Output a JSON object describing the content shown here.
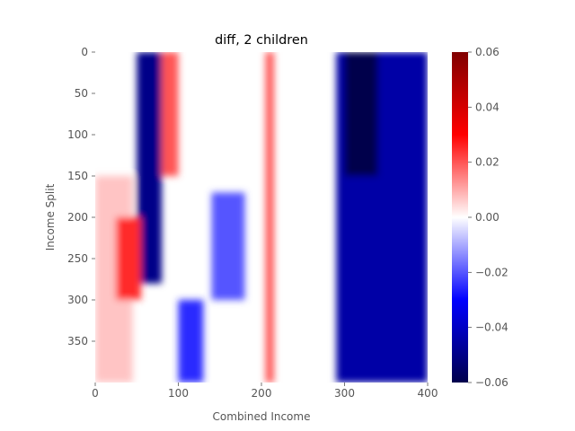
{
  "chart_data": {
    "type": "heatmap",
    "title": "diff, 2 children",
    "xlabel": "Combined Income",
    "ylabel": "Income Split",
    "xlim": [
      0,
      400
    ],
    "ylim": [
      400,
      0
    ],
    "x_ticks": [
      "0",
      "100",
      "200",
      "300",
      "400"
    ],
    "y_ticks": [
      "0",
      "50",
      "100",
      "150",
      "200",
      "250",
      "300",
      "350"
    ],
    "colormap": "seismic",
    "colorbar": {
      "vmin": -0.06,
      "vmax": 0.06,
      "ticks": [
        "−0.06",
        "−0.04",
        "−0.02",
        "0.00",
        "0.02",
        "0.04",
        "0.06"
      ]
    },
    "grid": false,
    "features": [
      {
        "x_range": [
          290,
          400
        ],
        "y_range": [
          0,
          400
        ],
        "approx_value": -0.045
      },
      {
        "x_range": [
          300,
          340
        ],
        "y_range": [
          0,
          150
        ],
        "approx_value": -0.06
      },
      {
        "x_range": [
          50,
          80
        ],
        "y_range": [
          0,
          280
        ],
        "approx_value": -0.05
      },
      {
        "x_range": [
          0,
          45
        ],
        "y_range": [
          150,
          400
        ],
        "approx_value": 0.007
      },
      {
        "x_range": [
          25,
          55
        ],
        "y_range": [
          200,
          300
        ],
        "approx_value": 0.025
      },
      {
        "x_range": [
          80,
          100
        ],
        "y_range": [
          0,
          150
        ],
        "approx_value": 0.02
      },
      {
        "x_range": [
          205,
          215
        ],
        "y_range": [
          0,
          400
        ],
        "approx_value": 0.02
      },
      {
        "x_range": [
          140,
          180
        ],
        "y_range": [
          170,
          300
        ],
        "approx_value": -0.02
      },
      {
        "x_range": [
          100,
          130
        ],
        "y_range": [
          300,
          400
        ],
        "approx_value": -0.025
      }
    ]
  }
}
